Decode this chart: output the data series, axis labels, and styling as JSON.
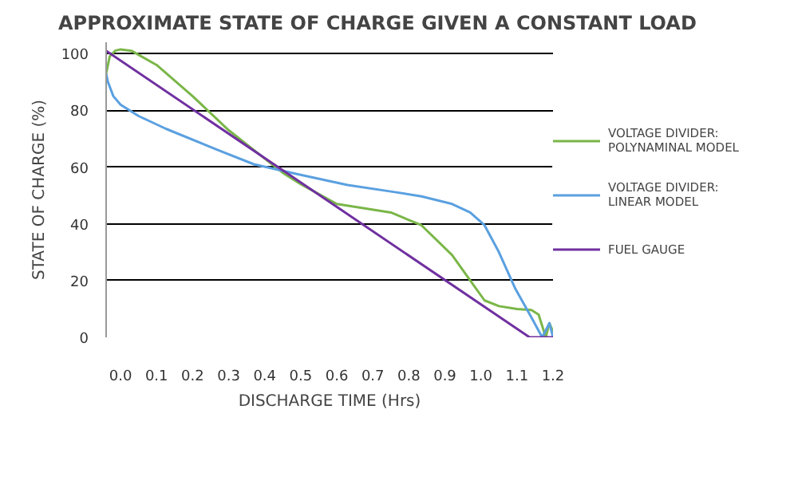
{
  "chart_data": {
    "type": "line",
    "title": "APPROXIMATE STATE OF CHARGE GIVEN A CONSTANT LOAD",
    "xlabel": "DISCHARGE TIME (Hrs)",
    "ylabel": "STATE OF CHARGE (%)",
    "xlim": [
      -0.04,
      1.2
    ],
    "xticks": [
      {
        "value": 0.0,
        "label": "0.0"
      },
      0.1,
      0.2,
      0.3,
      0.4,
      0.5,
      0.6,
      0.7,
      0.8,
      0.9,
      {
        "value": 1.0,
        "label": "1.0"
      },
      1.1,
      1.2
    ],
    "ylim": [
      0,
      104
    ],
    "yticks": [
      0,
      20,
      40,
      60,
      80,
      100
    ],
    "grid": "y",
    "legend": "right",
    "line_style": "solid",
    "series": [
      {
        "name": "VOLTAGE DIVIDER:\nPOLYNAMINAL MODEL",
        "color": "#7ab648",
        "x": [
          -0.04,
          -0.03,
          -0.015,
          0.0,
          0.03,
          0.1,
          0.2,
          0.3,
          0.4,
          0.45,
          0.5,
          0.6,
          0.75,
          0.835,
          0.92,
          0.965,
          1.01,
          1.05,
          1.1,
          1.14,
          1.16,
          1.18,
          1.19,
          1.2
        ],
        "values": [
          93,
          99,
          101,
          101.5,
          101,
          96,
          85,
          73,
          63,
          58,
          54,
          47,
          44,
          39.5,
          29,
          21,
          13,
          11,
          10,
          9.6,
          8,
          0,
          5,
          2
        ]
      },
      {
        "name": "VOLTAGE DIVIDER:\nLINEAR MODEL",
        "color": "#5aa0e0",
        "x": [
          -0.04,
          -0.035,
          -0.02,
          0.0,
          0.05,
          0.126,
          0.27,
          0.37,
          0.487,
          0.63,
          0.75,
          0.835,
          0.92,
          0.97,
          1.01,
          1.05,
          1.096,
          1.14,
          1.17,
          1.19,
          1.2
        ],
        "values": [
          93,
          90,
          85,
          82,
          78,
          73.5,
          66,
          61,
          57.6,
          53.7,
          51.4,
          49.7,
          47,
          44,
          39.5,
          30,
          17,
          7,
          0,
          5,
          0
        ]
      },
      {
        "name": "FUEL GAUGE",
        "color": "#7030a0",
        "x": [
          -0.04,
          1.135,
          1.2
        ],
        "values": [
          101,
          0,
          0
        ]
      }
    ]
  }
}
